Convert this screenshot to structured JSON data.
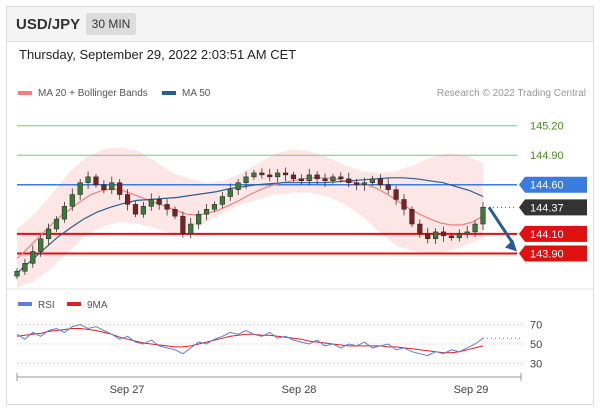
{
  "header": {
    "symbol": "USD/JPY",
    "timeframe": "30 MIN"
  },
  "timestamp": "Thursday, September 29, 2022 2:03:51 AM CET",
  "colors": {
    "bullish_candle": "#3a7a3a",
    "bearish_candle": "#7a2222",
    "ma20_bollinger": "#f08080",
    "bollinger_fill": "#fde3e3",
    "ma50": "#2a5d8e",
    "resistance_green": "#8cc36a",
    "pivot_blue": "#3a7be0",
    "support_red": "#e01010",
    "current_price_bg": "#333333",
    "rsi": "#5b7fdb",
    "rsi_ma": "#e02020",
    "forecast_arrow": "#2a5a9a"
  },
  "chart_data": [
    {
      "type": "candlestick",
      "legend": [
        {
          "name": "MA 20 + Bollinger Bands",
          "color": "#f08080"
        },
        {
          "name": "MA 50",
          "color": "#2a5d8e"
        }
      ],
      "watermark": "Research © 2022 Trading Central",
      "ylim": [
        143.6,
        145.35
      ],
      "x_ticks": [
        "Sep 27",
        "Sep 28",
        "Sep 29"
      ],
      "levels": [
        {
          "label": "145.20",
          "value": 145.2,
          "style": "resistance",
          "color": "#8cc36a",
          "tag": false
        },
        {
          "label": "144.90",
          "value": 144.9,
          "style": "resistance",
          "color": "#8cc36a",
          "tag": false
        },
        {
          "label": "144.60",
          "value": 144.6,
          "style": "pivot",
          "color": "#3a7be0",
          "tag": true
        },
        {
          "label": "144.37",
          "value": 144.37,
          "style": "current",
          "color": "#333333",
          "tag": true
        },
        {
          "label": "144.10",
          "value": 144.1,
          "style": "support",
          "color": "#e01010",
          "tag": true
        },
        {
          "label": "143.90",
          "value": 143.9,
          "style": "support",
          "color": "#e01010",
          "tag": true
        }
      ],
      "close_path": [
        143.72,
        143.8,
        143.92,
        144.05,
        144.15,
        144.25,
        144.38,
        144.5,
        144.62,
        144.68,
        144.6,
        144.55,
        144.62,
        144.5,
        144.4,
        144.3,
        144.38,
        144.45,
        144.4,
        144.35,
        144.28,
        144.1,
        144.2,
        144.3,
        144.35,
        144.4,
        144.48,
        144.55,
        144.62,
        144.68,
        144.72,
        144.7,
        144.68,
        144.72,
        144.7,
        144.66,
        144.64,
        144.7,
        144.66,
        144.64,
        144.68,
        144.66,
        144.62,
        144.6,
        144.62,
        144.66,
        144.6,
        144.55,
        144.45,
        144.35,
        144.2,
        144.1,
        144.05,
        144.12,
        144.08,
        144.06,
        144.1,
        144.12,
        144.2,
        144.37
      ],
      "ma20": [
        143.85,
        143.95,
        144.06,
        144.17,
        144.27,
        144.35,
        144.43,
        144.5,
        144.54,
        144.56,
        144.54,
        144.5,
        144.46,
        144.42,
        144.38,
        144.34,
        144.3,
        144.29,
        144.31,
        144.34,
        144.39,
        144.44,
        144.5,
        144.55,
        144.59,
        144.62,
        144.64,
        144.66,
        144.67,
        144.67,
        144.66,
        144.64,
        144.62,
        144.6,
        144.56,
        144.5,
        144.43,
        144.36,
        144.3,
        144.25,
        144.21,
        144.19,
        144.19,
        144.22,
        144.28
      ],
      "ma50": [
        143.7,
        143.82,
        143.94,
        144.06,
        144.16,
        144.25,
        144.32,
        144.37,
        144.41,
        144.44,
        144.45,
        144.46,
        144.47,
        144.49,
        144.51,
        144.53,
        144.56,
        144.58,
        144.6,
        144.61,
        144.62,
        144.62,
        144.62,
        144.62,
        144.63,
        144.64,
        144.65,
        144.66,
        144.67,
        144.67,
        144.66,
        144.64,
        144.62,
        144.58,
        144.54,
        144.48
      ],
      "bb_upper": [
        144.15,
        144.3,
        144.5,
        144.72,
        144.88,
        144.96,
        144.98,
        144.94,
        144.84,
        144.72,
        144.66,
        144.62,
        144.64,
        144.72,
        144.82,
        144.92,
        144.96,
        144.94,
        144.88,
        144.8,
        144.74,
        144.72,
        144.74,
        144.8,
        144.88,
        144.92,
        144.9,
        144.82
      ],
      "bb_lower": [
        143.55,
        143.62,
        143.75,
        143.92,
        144.08,
        144.18,
        144.22,
        144.2,
        144.16,
        144.1,
        144.14,
        144.22,
        144.32,
        144.4,
        144.45,
        144.5,
        144.52,
        144.52,
        144.48,
        144.4,
        144.28,
        144.12,
        143.98,
        143.92,
        143.9,
        143.92,
        143.98,
        144.06
      ],
      "forecast": {
        "from": 144.37,
        "to": 143.9,
        "direction": "down"
      }
    },
    {
      "type": "line",
      "legend": [
        {
          "name": "RSI",
          "color": "#5b7fdb"
        },
        {
          "name": "9MA",
          "color": "#e02020"
        }
      ],
      "ylim": [
        20,
        80
      ],
      "y_ticks": [
        {
          "label": "70",
          "value": 70
        },
        {
          "label": "50",
          "value": 50
        },
        {
          "label": "30",
          "value": 30
        }
      ],
      "rsi": [
        60,
        55,
        62,
        58,
        64,
        66,
        62,
        68,
        70,
        66,
        68,
        64,
        60,
        55,
        58,
        52,
        50,
        54,
        48,
        46,
        44,
        40,
        46,
        52,
        50,
        55,
        58,
        62,
        60,
        64,
        60,
        58,
        62,
        56,
        58,
        54,
        52,
        50,
        54,
        48,
        50,
        46,
        50,
        48,
        52,
        46,
        48,
        50,
        44,
        46,
        42,
        40,
        38,
        42,
        40,
        44,
        42,
        46,
        50,
        56
      ],
      "ma9": [
        58,
        59,
        60,
        61,
        63,
        64,
        65,
        66,
        66,
        65,
        64,
        62,
        60,
        57,
        55,
        53,
        51,
        50,
        49,
        48,
        47,
        47,
        48,
        50,
        52,
        54,
        56,
        58,
        59,
        60,
        60,
        59,
        59,
        58,
        57,
        56,
        55,
        53,
        52,
        51,
        50,
        49,
        48,
        48,
        48,
        48,
        48,
        47,
        47,
        46,
        45,
        44,
        43,
        42,
        41,
        41,
        42,
        44,
        46,
        48
      ]
    }
  ]
}
